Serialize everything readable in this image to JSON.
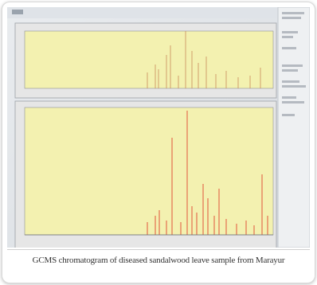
{
  "caption": "GCMS chromatogram of diseased sandalwood leave sample from Marayur"
}
